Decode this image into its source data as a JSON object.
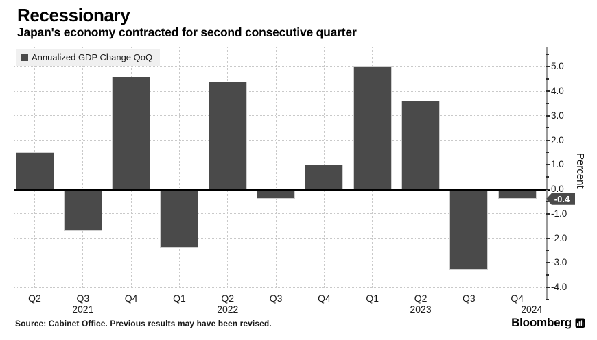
{
  "header": {
    "title": "Recessionary",
    "subtitle": "Japan's economy contracted for second consecutive quarter"
  },
  "chart_data": {
    "type": "bar",
    "title": "Recessionary",
    "subtitle": "Japan's economy contracted for second consecutive quarter",
    "series_name": "Annualized GDP Change QoQ",
    "categories": [
      "Q2",
      "Q3",
      "Q4",
      "Q1",
      "Q2",
      "Q3",
      "Q4",
      "Q1",
      "Q2",
      "Q3",
      "Q4"
    ],
    "values": [
      1.5,
      -1.7,
      4.6,
      -2.4,
      4.4,
      -0.4,
      1.0,
      5.0,
      3.6,
      -3.3,
      -0.4
    ],
    "year_labels": [
      {
        "text": "2021",
        "anchor_index": 1
      },
      {
        "text": "2022",
        "anchor_index": 4
      },
      {
        "text": "2023",
        "anchor_index": 8
      },
      {
        "text": "2024",
        "anchor_index": 10.3
      }
    ],
    "yticks": [
      {
        "v": 5,
        "label": "5.0"
      },
      {
        "v": 4,
        "label": "4.0"
      },
      {
        "v": 3,
        "label": "3.0"
      },
      {
        "v": 2,
        "label": "2.0"
      },
      {
        "v": 1,
        "label": "1.0"
      },
      {
        "v": 0,
        "label": "0.0"
      },
      {
        "v": -1,
        "label": "-1.0"
      },
      {
        "v": -2,
        "label": "-2.0"
      },
      {
        "v": -3,
        "label": "-3.0"
      },
      {
        "v": -4,
        "label": "-4.0"
      }
    ],
    "ylabel": "Percent",
    "ylim": [
      -4.4,
      5.8
    ],
    "grid": true,
    "legend_position": "top-left",
    "last_value_label": "-0.4",
    "last_value": -0.4
  },
  "footer": {
    "source": "Source: Cabinet Office. Previous results may have been revised.",
    "brand": "Bloomberg"
  },
  "colors": {
    "bar": "#4a4a4a",
    "badge_bg": "#4a4a4a",
    "badge_text": "#ffffff",
    "zero_line": "#000000",
    "gridline": "#c9c9c9",
    "axis_spine": "#9a9a9a",
    "legend_bg": "#f0f0f0",
    "text": "#000000"
  }
}
